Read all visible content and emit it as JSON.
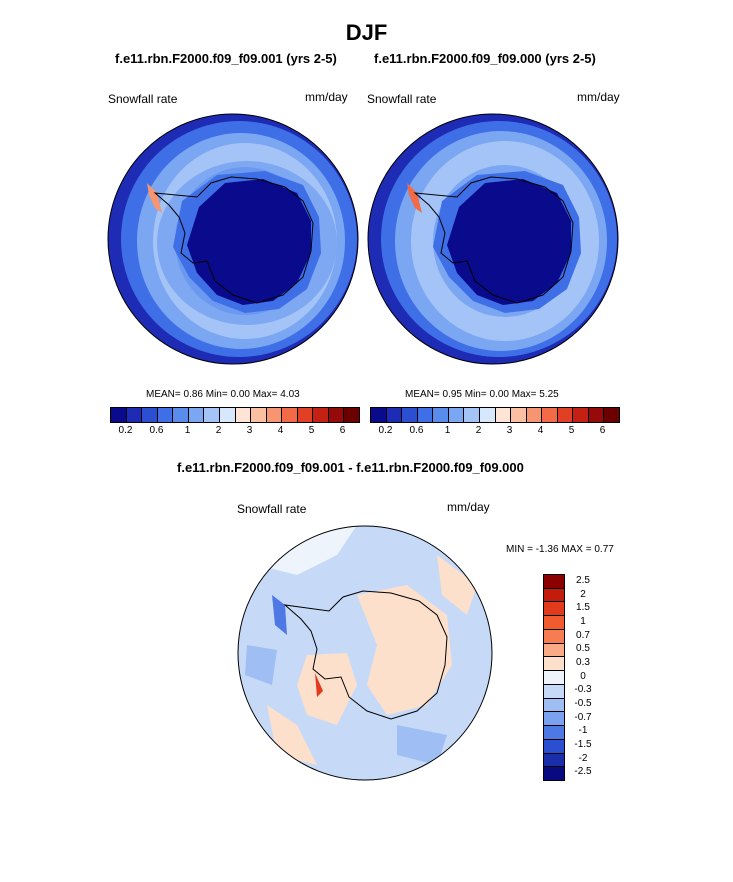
{
  "title": "DJF",
  "panel_left": {
    "case": "f.e11.rbn.F2000.f09_f09.001 (yrs 2-5)",
    "variable": "Snowfall rate",
    "units": "mm/day",
    "stats": "MEAN=   0.86  Min=   0.00  Max=   4.03"
  },
  "panel_right": {
    "case": "f.e11.rbn.F2000.f09_f09.000 (yrs 2-5)",
    "variable": "Snowfall rate",
    "units": "mm/day",
    "stats": "MEAN=   0.95  Min=   0.00  Max=   5.25"
  },
  "colorbar_top": {
    "colors": [
      "#0a0a8c",
      "#1e2bb4",
      "#2c4fd2",
      "#3f6fe6",
      "#5a8cec",
      "#7aa6f2",
      "#a4c4f8",
      "#d8e8fc",
      "#fde4d4",
      "#fbbfa2",
      "#f79570",
      "#f26a46",
      "#e24024",
      "#c42014",
      "#960a0a",
      "#6a0000"
    ],
    "ticks": [
      "0.2",
      "0.6",
      "1",
      "2",
      "3",
      "4",
      "5",
      "6"
    ]
  },
  "difference": {
    "title": "f.e11.rbn.F2000.f09_f09.001 - f.e11.rbn.F2000.f09_f09.000",
    "variable": "Snowfall rate",
    "units": "mm/day",
    "stats": "MIN =  -1.36 MAX =   0.77",
    "colors": [
      "#8c0000",
      "#c41c0c",
      "#e23a1c",
      "#f25a30",
      "#f77c52",
      "#fbaa86",
      "#fde0cc",
      "#eef4fc",
      "#c6daf8",
      "#9ebef4",
      "#7aa2ee",
      "#4e78e4",
      "#2c4fd2",
      "#1a2eaa",
      "#0a0a80"
    ],
    "ticks": [
      "2.5",
      "2",
      "1.5",
      "1",
      "0.7",
      "0.5",
      "0.3",
      "0",
      "-0.3",
      "-0.5",
      "-0.7",
      "-1",
      "-1.5",
      "-2",
      "-2.5"
    ]
  }
}
